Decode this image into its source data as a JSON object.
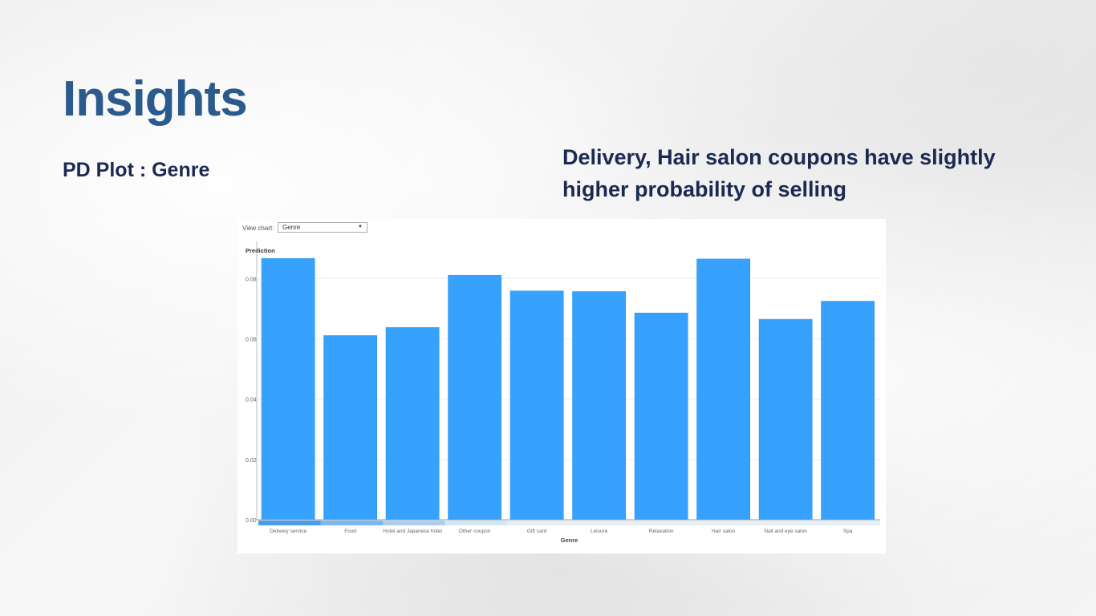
{
  "page": {
    "title": "Insights",
    "subtitle": "PD Plot : Genre",
    "insight": "Delivery, Hair salon coupons have slightly higher probability of selling"
  },
  "controls": {
    "view_chart_label": "View chart:",
    "view_chart_value": "Genre",
    "dropdown_icon": "chevron-down-icon"
  },
  "colors": {
    "title": "#2a5b8c",
    "text": "#1c2a52",
    "bar": "#36a2fd"
  },
  "chart_data": {
    "type": "bar",
    "ylabel": "Prediction",
    "xlabel": "Genre",
    "categories": [
      "Delivery service",
      "Food",
      "Hotel and Japanese hotel",
      "Other coupon",
      "Gift card",
      "Leisure",
      "Relaxation",
      "Hair salon",
      "Nail and eye salon",
      "Spa"
    ],
    "values": [
      0.0867,
      0.0611,
      0.0638,
      0.0811,
      0.0759,
      0.0757,
      0.0686,
      0.0865,
      0.0665,
      0.0725
    ],
    "ylim": [
      0,
      0.087
    ],
    "yticks": [
      "0.00",
      "0.02",
      "0.04",
      "0.06",
      "0.08"
    ],
    "ytick_values": [
      0,
      0.02,
      0.04,
      0.06,
      0.08
    ],
    "grid": true,
    "legend": "none"
  }
}
